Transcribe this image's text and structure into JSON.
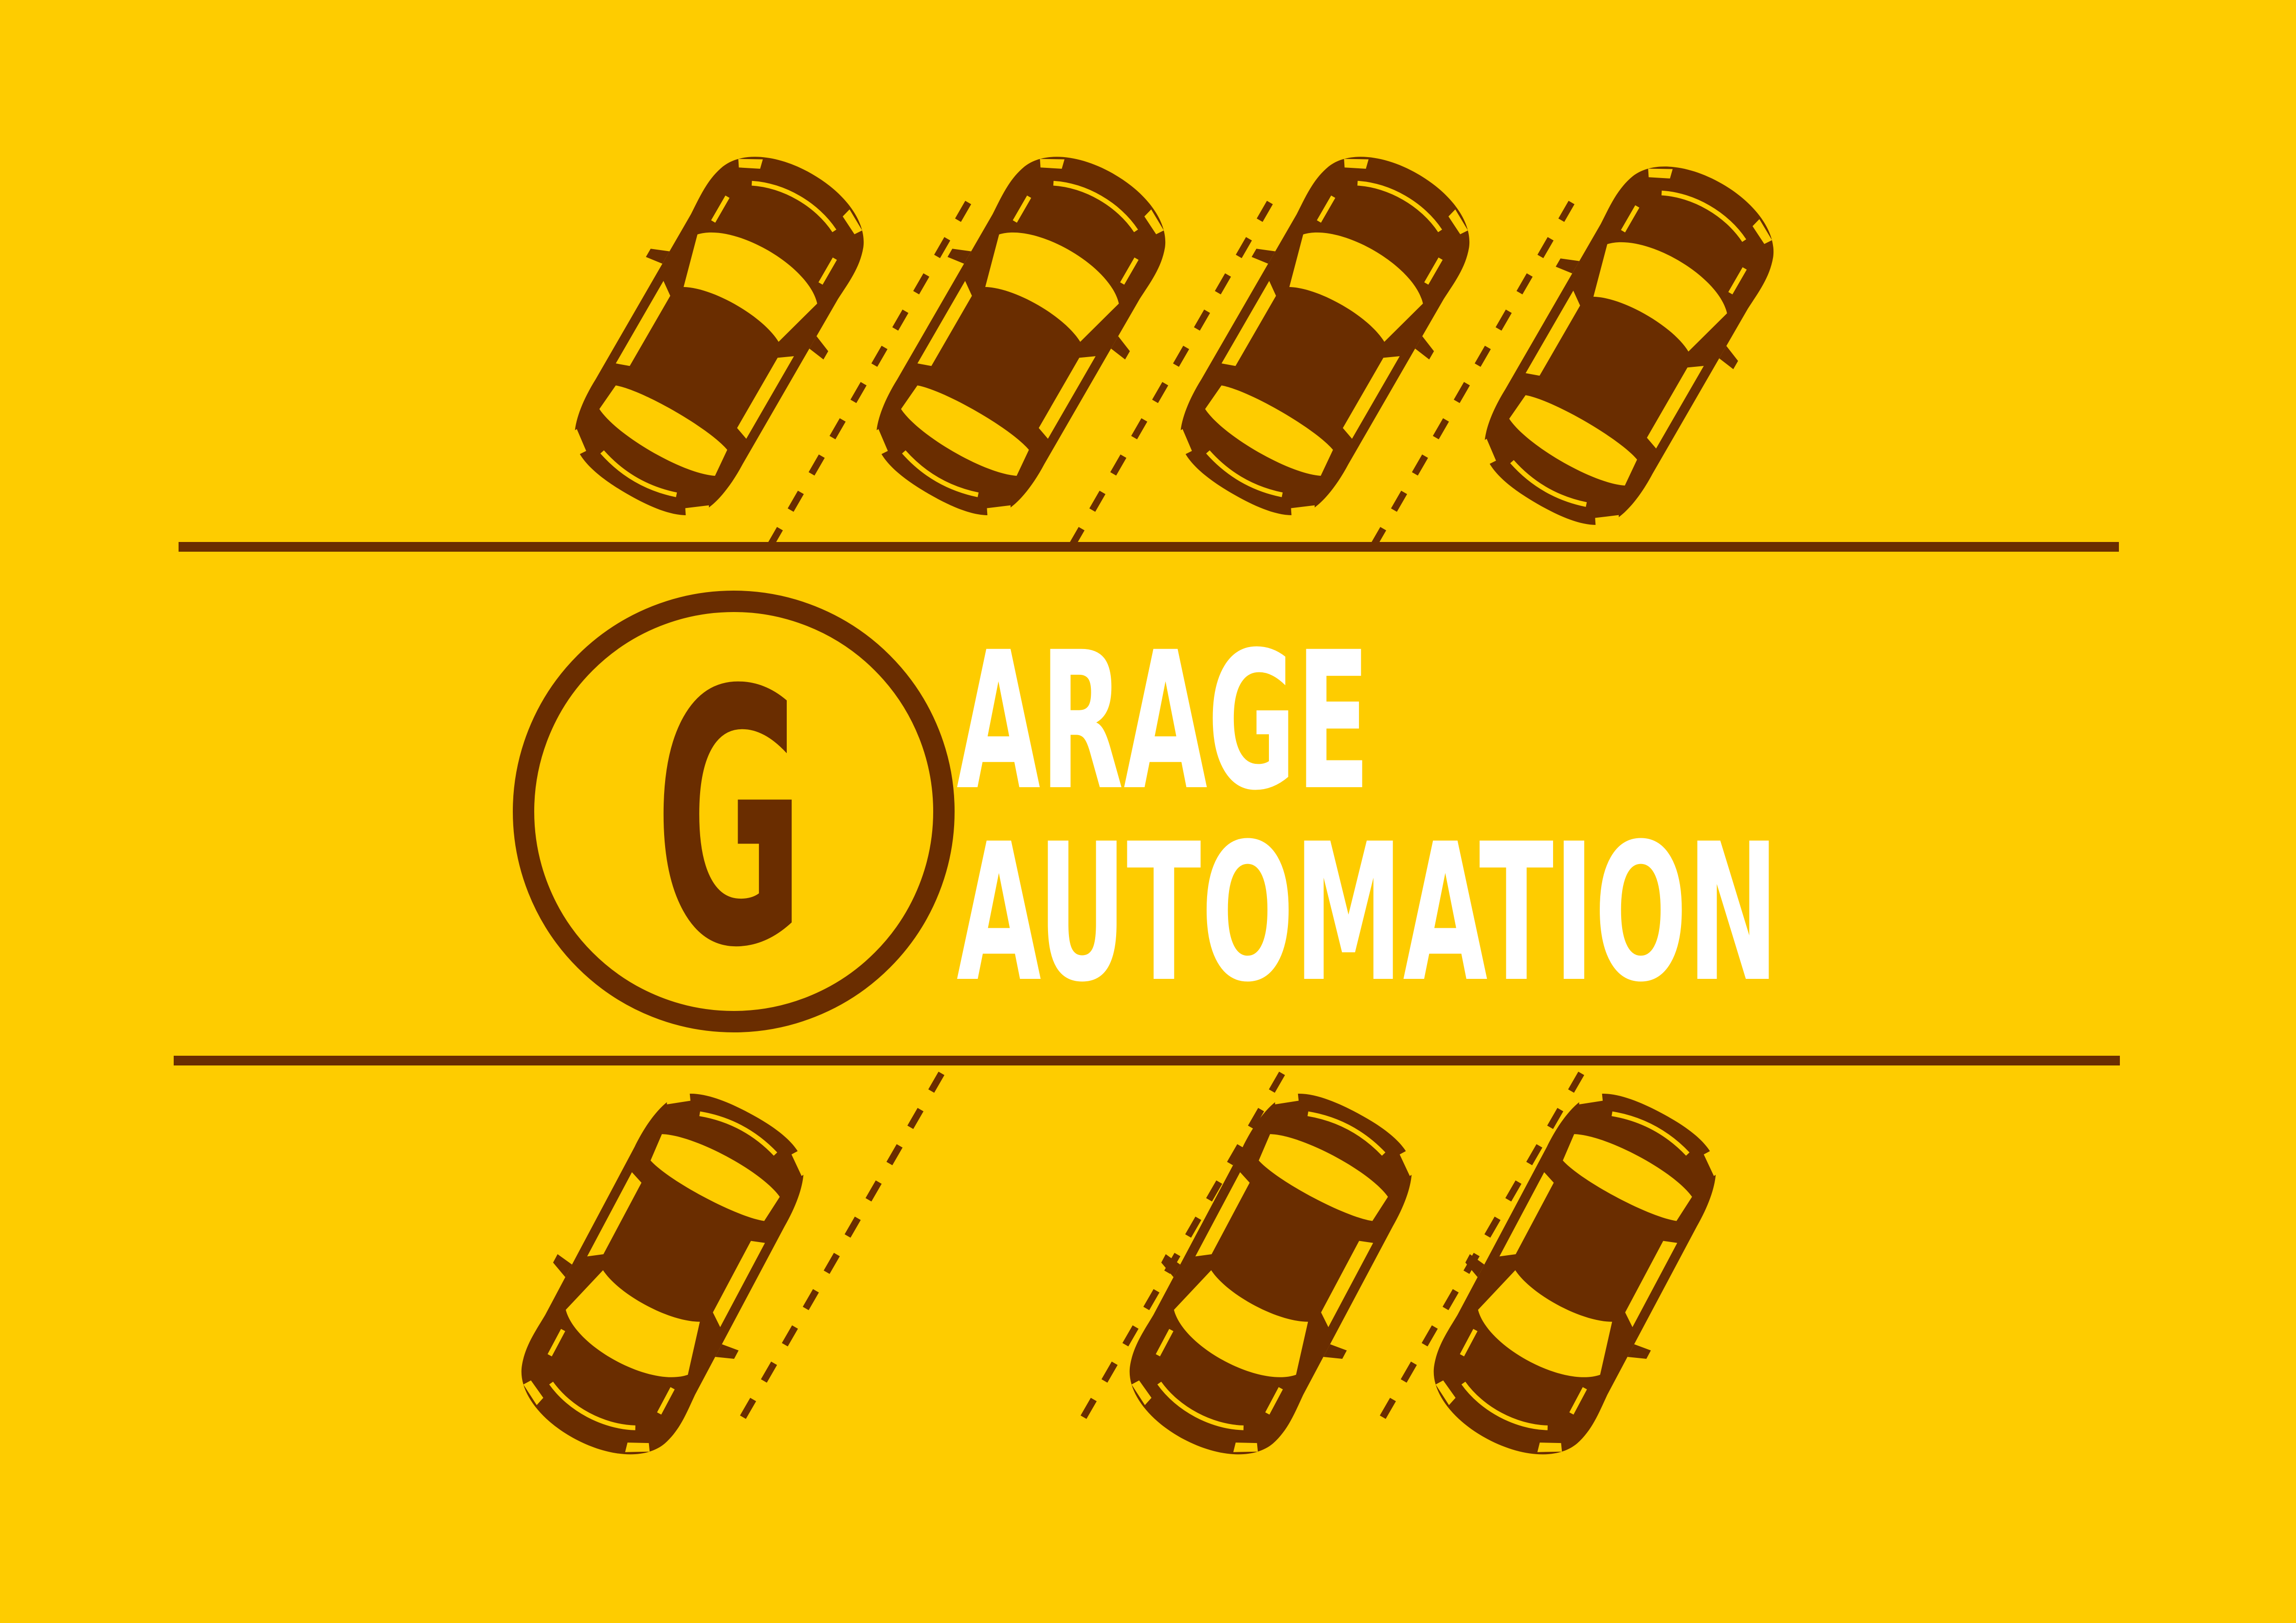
{
  "colors": {
    "background": "#FECC00",
    "brown": "#6A2D00",
    "windows": "#FECC00",
    "text_white": "#FFFFFF"
  },
  "logo": {
    "initial": "G",
    "line1_rest": "ARAGE",
    "line2": "AUTOMATION"
  },
  "icons": {
    "car": "car-top-view-icon",
    "logo_ring": "g-circle-logo"
  },
  "cars": {
    "top_row_count": 4,
    "bottom_row_count": 3
  }
}
